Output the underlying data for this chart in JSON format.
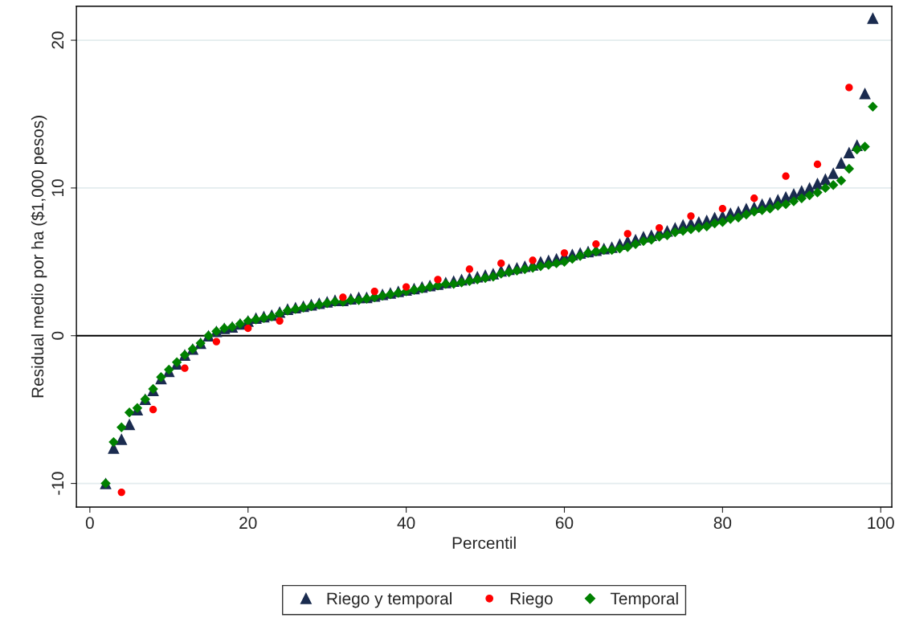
{
  "chart_data": {
    "type": "scatter",
    "xlabel": "Percentil",
    "ylabel": "Residual medio por ha ($1,000 pesos)",
    "xlim": [
      -1.7,
      101.4
    ],
    "ylim": [
      -11.6,
      22.3
    ],
    "xticks": [
      0,
      20,
      40,
      60,
      80,
      100
    ],
    "yticks": [
      -10,
      0,
      10,
      20
    ],
    "grid": "y",
    "legend": "bottom",
    "ref_lines": [
      {
        "axis": "y",
        "value": 0,
        "color": "#000000"
      }
    ],
    "series": [
      {
        "name": "Riego y temporal",
        "color": "#1a2b4f",
        "marker": "triangle",
        "x": [
          2,
          3,
          4,
          5,
          6,
          7,
          8,
          9,
          10,
          11,
          12,
          13,
          14,
          15,
          16,
          17,
          18,
          19,
          20,
          21,
          22,
          23,
          24,
          25,
          26,
          27,
          28,
          29,
          30,
          31,
          32,
          33,
          34,
          35,
          36,
          37,
          38,
          39,
          40,
          41,
          42,
          43,
          44,
          45,
          46,
          47,
          48,
          49,
          50,
          51,
          52,
          53,
          54,
          55,
          56,
          57,
          58,
          59,
          60,
          61,
          62,
          63,
          64,
          65,
          66,
          67,
          68,
          69,
          70,
          71,
          72,
          73,
          74,
          75,
          76,
          77,
          78,
          79,
          80,
          81,
          82,
          83,
          84,
          85,
          86,
          87,
          88,
          89,
          90,
          91,
          92,
          93,
          94,
          95,
          96,
          97,
          98,
          99
        ],
        "values": [
          -10.0,
          -7.6,
          -7.0,
          -6.0,
          -5.0,
          -4.3,
          -3.7,
          -2.9,
          -2.4,
          -1.9,
          -1.3,
          -0.9,
          -0.5,
          0.0,
          0.3,
          0.5,
          0.6,
          0.8,
          1.0,
          1.2,
          1.3,
          1.4,
          1.6,
          1.8,
          1.9,
          2.0,
          2.1,
          2.2,
          2.3,
          2.4,
          2.4,
          2.5,
          2.6,
          2.6,
          2.7,
          2.8,
          2.9,
          3.0,
          3.1,
          3.2,
          3.3,
          3.4,
          3.5,
          3.6,
          3.7,
          3.8,
          3.9,
          4.0,
          4.1,
          4.2,
          4.4,
          4.5,
          4.6,
          4.7,
          4.8,
          5.0,
          5.1,
          5.2,
          5.4,
          5.5,
          5.6,
          5.7,
          5.8,
          5.9,
          6.0,
          6.2,
          6.4,
          6.5,
          6.7,
          6.8,
          7.0,
          7.1,
          7.3,
          7.5,
          7.6,
          7.7,
          7.8,
          8.0,
          8.1,
          8.3,
          8.4,
          8.6,
          8.7,
          8.9,
          9.0,
          9.2,
          9.4,
          9.6,
          9.8,
          10.0,
          10.3,
          10.6,
          11.0,
          11.7,
          12.4,
          12.9,
          16.4,
          21.5
        ]
      },
      {
        "name": "Riego",
        "color": "#ff0000",
        "marker": "circle",
        "x": [
          4,
          8,
          12,
          16,
          20,
          24,
          28,
          32,
          36,
          40,
          44,
          48,
          52,
          56,
          60,
          64,
          68,
          72,
          76,
          80,
          84,
          88,
          92,
          96
        ],
        "values": [
          -10.6,
          -5.0,
          -2.2,
          -0.4,
          0.5,
          1.0,
          null,
          2.6,
          3.0,
          3.3,
          3.8,
          4.5,
          4.9,
          5.1,
          5.6,
          6.2,
          6.9,
          7.3,
          8.1,
          8.6,
          9.3,
          10.8,
          11.6,
          16.8
        ]
      },
      {
        "name": "Temporal",
        "color": "#008000",
        "marker": "diamond",
        "x": [
          2,
          3,
          4,
          5,
          6,
          7,
          8,
          9,
          10,
          11,
          12,
          13,
          14,
          15,
          16,
          17,
          18,
          19,
          20,
          21,
          22,
          23,
          24,
          25,
          26,
          27,
          28,
          29,
          30,
          31,
          32,
          33,
          34,
          35,
          36,
          37,
          38,
          39,
          40,
          41,
          42,
          43,
          44,
          45,
          46,
          47,
          48,
          49,
          50,
          51,
          52,
          53,
          54,
          55,
          56,
          57,
          58,
          59,
          60,
          61,
          62,
          63,
          64,
          65,
          66,
          67,
          68,
          69,
          70,
          71,
          72,
          73,
          74,
          75,
          76,
          77,
          78,
          79,
          80,
          81,
          82,
          83,
          84,
          85,
          86,
          87,
          88,
          89,
          90,
          91,
          92,
          93,
          94,
          95,
          96,
          97,
          98,
          99
        ],
        "values": [
          -10.0,
          -7.2,
          -6.2,
          -5.2,
          -4.9,
          -4.3,
          -3.6,
          -2.8,
          -2.3,
          -1.8,
          -1.3,
          -0.9,
          -0.5,
          0.0,
          0.3,
          0.5,
          0.6,
          0.8,
          1.0,
          1.1,
          1.2,
          1.3,
          1.5,
          1.7,
          1.8,
          1.9,
          2.0,
          2.1,
          2.2,
          2.3,
          2.3,
          2.4,
          2.4,
          2.5,
          2.6,
          2.7,
          2.8,
          2.9,
          3.0,
          3.1,
          3.2,
          3.3,
          3.4,
          3.5,
          3.5,
          3.6,
          3.7,
          3.8,
          3.9,
          4.0,
          4.2,
          4.3,
          4.4,
          4.5,
          4.6,
          4.7,
          4.8,
          4.9,
          5.0,
          5.2,
          5.4,
          5.6,
          5.7,
          5.8,
          5.8,
          5.9,
          6.0,
          6.2,
          6.4,
          6.5,
          6.7,
          6.8,
          7.0,
          7.1,
          7.2,
          7.3,
          7.4,
          7.6,
          7.7,
          7.9,
          8.0,
          8.2,
          8.4,
          8.5,
          8.6,
          8.8,
          8.9,
          9.1,
          9.3,
          9.5,
          9.7,
          10.0,
          10.2,
          10.5,
          11.3,
          12.6,
          12.8,
          15.5
        ]
      }
    ]
  }
}
